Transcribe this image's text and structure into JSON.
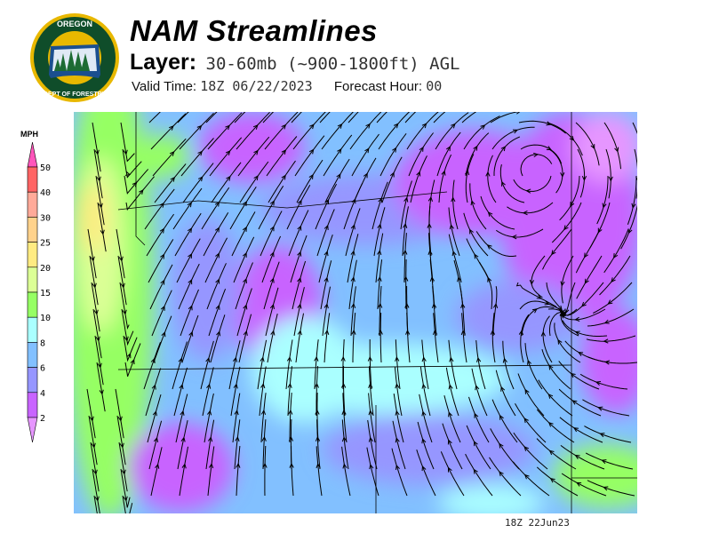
{
  "header": {
    "logo_text": "OREGON DEPARTMENT OF FORESTRY",
    "title": "NAM Streamlines",
    "layer_label": "Layer:",
    "layer_value": "30-60mb (~900-1800ft) AGL",
    "valid_time_label": "Valid Time:",
    "valid_time_value": "18Z 06/22/2023",
    "forecast_hour_label": "Forecast Hour:",
    "forecast_hour_value": "00"
  },
  "legend": {
    "unit": "MPH",
    "levels": [
      "50",
      "40",
      "30",
      "25",
      "20",
      "15",
      "10",
      "8",
      "6",
      "4",
      "2"
    ],
    "colors": [
      "#ff6464",
      "#ffaa99",
      "#ffd28c",
      "#ffeb82",
      "#dcff96",
      "#96ff64",
      "#aaffff",
      "#82c0ff",
      "#9696ff",
      "#c864ff"
    ],
    "over_color": "#ff55bb",
    "under_color": "#e696ff"
  },
  "map": {
    "type": "streamlines wind speed map"
  },
  "footer": {
    "timestamp": "18Z 22Jun23"
  }
}
